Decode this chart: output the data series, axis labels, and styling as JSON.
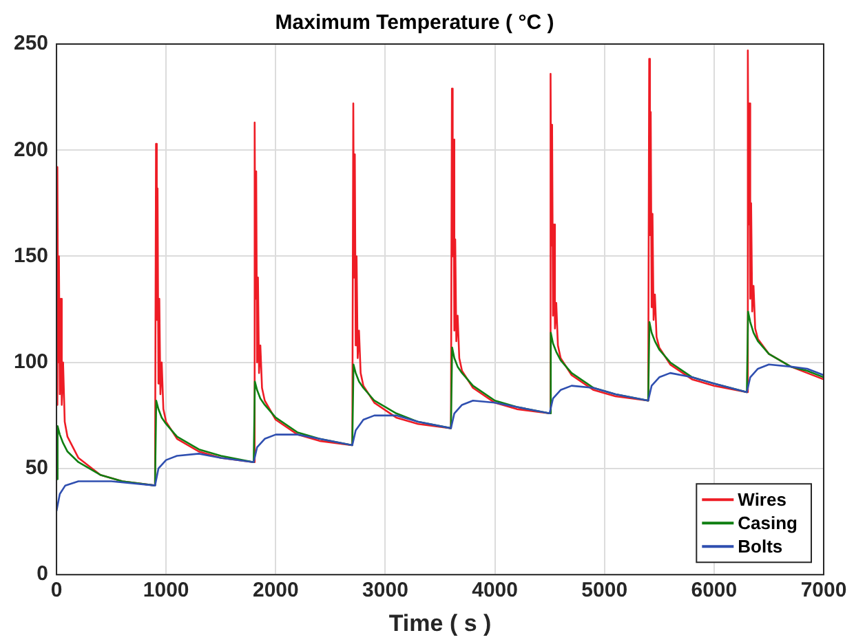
{
  "chart_data": {
    "type": "line",
    "title": "Maximum Temperature ( °C )",
    "xlabel": "Time ( s )",
    "xlim": [
      0,
      7000
    ],
    "xticks": [
      0,
      1000,
      2000,
      3000,
      4000,
      5000,
      6000,
      7000
    ],
    "ylim": [
      0,
      250
    ],
    "yticks": [
      0,
      50,
      100,
      150,
      200,
      250
    ],
    "grid": true,
    "legend": "bottom right",
    "marker": "none",
    "line_style": "solid",
    "series": [
      {
        "name": "Wires",
        "color": "#ee1c25",
        "x": [
          0,
          8,
          15,
          22,
          30,
          38,
          48,
          60,
          75,
          100,
          200,
          400,
          600,
          899,
          908,
          915,
          922,
          930,
          938,
          948,
          960,
          975,
          1000,
          1100,
          1300,
          1500,
          1799,
          1808,
          1815,
          1822,
          1830,
          1838,
          1848,
          1860,
          1875,
          1900,
          2000,
          2200,
          2400,
          2699,
          2708,
          2715,
          2722,
          2730,
          2738,
          2748,
          2760,
          2775,
          2800,
          2900,
          3100,
          3300,
          3599,
          3608,
          3615,
          3622,
          3630,
          3638,
          3648,
          3660,
          3675,
          3700,
          3800,
          4000,
          4200,
          4499,
          4508,
          4515,
          4522,
          4530,
          4538,
          4548,
          4560,
          4575,
          4600,
          4700,
          4900,
          5100,
          5399,
          5408,
          5415,
          5422,
          5430,
          5438,
          5448,
          5460,
          5475,
          5500,
          5600,
          5800,
          6000,
          6299,
          6308,
          6315,
          6322,
          6330,
          6338,
          6348,
          6360,
          6375,
          6400,
          6500,
          6700,
          6850,
          7000
        ],
        "values": [
          80,
          192,
          100,
          150,
          85,
          130,
          80,
          100,
          72,
          65,
          55,
          47,
          44,
          42,
          203,
          120,
          182,
          90,
          130,
          85,
          100,
          78,
          72,
          64,
          58,
          55,
          53,
          213,
          130,
          190,
          100,
          140,
          95,
          108,
          88,
          82,
          73,
          66,
          63,
          61,
          222,
          140,
          198,
          108,
          150,
          102,
          115,
          95,
          89,
          81,
          74,
          71,
          69,
          229,
          150,
          205,
          115,
          158,
          110,
          122,
          102,
          96,
          88,
          81,
          78,
          76,
          236,
          155,
          212,
          122,
          165,
          116,
          128,
          108,
          102,
          94,
          87,
          84,
          82,
          243,
          160,
          218,
          126,
          170,
          120,
          132,
          112,
          107,
          99,
          92,
          89,
          86,
          247,
          165,
          222,
          130,
          175,
          124,
          136,
          116,
          111,
          104,
          98,
          95,
          92
        ]
      },
      {
        "name": "Casing",
        "color": "#0f7f12",
        "x": [
          0,
          10,
          30,
          60,
          100,
          200,
          400,
          600,
          899,
          910,
          930,
          960,
          1000,
          1100,
          1300,
          1500,
          1799,
          1810,
          1830,
          1860,
          1900,
          2000,
          2200,
          2400,
          2699,
          2710,
          2730,
          2760,
          2800,
          2900,
          3100,
          3300,
          3599,
          3610,
          3630,
          3660,
          3700,
          3800,
          4000,
          4200,
          4499,
          4510,
          4530,
          4560,
          4600,
          4700,
          4900,
          5100,
          5399,
          5410,
          5430,
          5460,
          5500,
          5600,
          5800,
          6000,
          6299,
          6310,
          6330,
          6360,
          6400,
          6500,
          6700,
          6850,
          7000
        ],
        "values": [
          45,
          70,
          66,
          62,
          58,
          53,
          47,
          44,
          42,
          82,
          78,
          74,
          71,
          65,
          59,
          56,
          53,
          91,
          87,
          83,
          80,
          74,
          67,
          64,
          61,
          99,
          95,
          91,
          88,
          82,
          76,
          72,
          69,
          107,
          102,
          98,
          95,
          89,
          82,
          79,
          76,
          114,
          109,
          105,
          101,
          95,
          88,
          85,
          82,
          119,
          114,
          110,
          106,
          100,
          93,
          90,
          86,
          124,
          119,
          114,
          110,
          104,
          98,
          96,
          93
        ]
      },
      {
        "name": "Bolts",
        "color": "#2f4fb0",
        "x": [
          0,
          30,
          80,
          200,
          500,
          899,
          930,
          1000,
          1100,
          1300,
          1500,
          1799,
          1830,
          1900,
          2000,
          2200,
          2400,
          2699,
          2730,
          2800,
          2900,
          3100,
          3300,
          3599,
          3630,
          3700,
          3800,
          4000,
          4200,
          4499,
          4530,
          4600,
          4700,
          4900,
          5100,
          5399,
          5430,
          5500,
          5600,
          5800,
          6000,
          6299,
          6330,
          6400,
          6500,
          6700,
          6850,
          7000
        ],
        "values": [
          30,
          38,
          42,
          44,
          44,
          42,
          50,
          54,
          56,
          57,
          55,
          53,
          60,
          64,
          66,
          66,
          64,
          61,
          68,
          73,
          75,
          75,
          72,
          69,
          76,
          80,
          82,
          81,
          79,
          76,
          83,
          87,
          89,
          88,
          85,
          82,
          89,
          93,
          95,
          93,
          90,
          86,
          93,
          97,
          99,
          98,
          97,
          94
        ]
      }
    ]
  }
}
